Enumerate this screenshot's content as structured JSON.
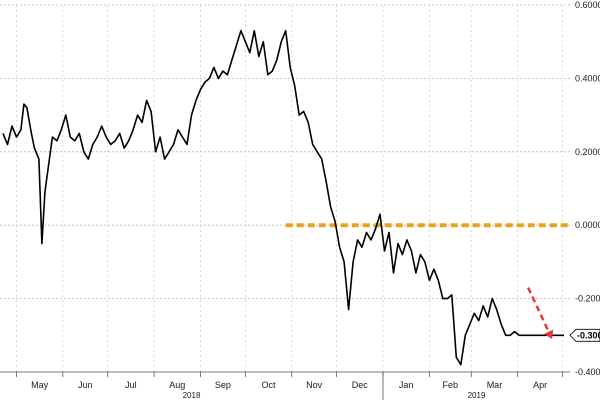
{
  "chart_data": {
    "type": "line",
    "title": "",
    "xlabel": "",
    "ylabel": "",
    "ylim": [
      -0.4,
      0.6
    ],
    "yticks": [
      -0.4,
      -0.3,
      -0.2,
      0.0,
      0.2,
      0.4,
      0.6
    ],
    "ytick_labels": [
      "-0.4000",
      "-0.3000",
      "-0.2000",
      "0.0000",
      "0.2000",
      "0.4000",
      "0.6000"
    ],
    "last_value_label": "-0.3000",
    "grid": true,
    "x_months": [
      "May",
      "Jun",
      "Jul",
      "Aug",
      "Sep",
      "Oct",
      "Nov",
      "Dec",
      "Jan",
      "Feb",
      "Mar",
      "Apr"
    ],
    "x_years": [
      "2018",
      "2019"
    ],
    "x_range": [
      "2018-04-20",
      "2019-05-06"
    ],
    "series": [
      {
        "name": "",
        "color": "#000000",
        "x": [
          "2018-04-22",
          "2018-04-25",
          "2018-04-28",
          "2018-05-01",
          "2018-05-04",
          "2018-05-06",
          "2018-05-08",
          "2018-05-11",
          "2018-05-13",
          "2018-05-16",
          "2018-05-18",
          "2018-05-20",
          "2018-05-23",
          "2018-05-25",
          "2018-05-28",
          "2018-05-31",
          "2018-06-03",
          "2018-06-06",
          "2018-06-09",
          "2018-06-12",
          "2018-06-15",
          "2018-06-18",
          "2018-06-21",
          "2018-06-24",
          "2018-06-27",
          "2018-06-30",
          "2018-07-03",
          "2018-07-06",
          "2018-07-09",
          "2018-07-12",
          "2018-07-15",
          "2018-07-18",
          "2018-07-21",
          "2018-07-24",
          "2018-07-27",
          "2018-07-30",
          "2018-08-02",
          "2018-08-05",
          "2018-08-08",
          "2018-08-11",
          "2018-08-14",
          "2018-08-17",
          "2018-08-20",
          "2018-08-23",
          "2018-08-26",
          "2018-08-29",
          "2018-09-01",
          "2018-09-04",
          "2018-09-07",
          "2018-09-10",
          "2018-09-13",
          "2018-09-16",
          "2018-09-19",
          "2018-09-22",
          "2018-09-25",
          "2018-09-28",
          "2018-10-01",
          "2018-10-04",
          "2018-10-07",
          "2018-10-10",
          "2018-10-13",
          "2018-10-16",
          "2018-10-19",
          "2018-10-22",
          "2018-10-25",
          "2018-10-28",
          "2018-10-31",
          "2018-11-03",
          "2018-11-06",
          "2018-11-09",
          "2018-11-12",
          "2018-11-15",
          "2018-11-18",
          "2018-11-21",
          "2018-11-24",
          "2018-11-27",
          "2018-11-30",
          "2018-12-03",
          "2018-12-06",
          "2018-12-09",
          "2018-12-12",
          "2018-12-15",
          "2018-12-18",
          "2018-12-21",
          "2018-12-24",
          "2018-12-27",
          "2018-12-30",
          "2019-01-02",
          "2019-01-05",
          "2019-01-08",
          "2019-01-11",
          "2019-01-14",
          "2019-01-17",
          "2019-01-20",
          "2019-01-23",
          "2019-01-26",
          "2019-01-29",
          "2019-02-01",
          "2019-02-04",
          "2019-02-07",
          "2019-02-10",
          "2019-02-13",
          "2019-02-16",
          "2019-02-19",
          "2019-02-22",
          "2019-02-25",
          "2019-02-28",
          "2019-03-03",
          "2019-03-06",
          "2019-03-09",
          "2019-03-12",
          "2019-03-15",
          "2019-03-18",
          "2019-03-21",
          "2019-03-24",
          "2019-03-27",
          "2019-03-30",
          "2019-04-02",
          "2019-04-05",
          "2019-04-08",
          "2019-04-11",
          "2019-04-14",
          "2019-04-17",
          "2019-04-20",
          "2019-04-23",
          "2019-04-26",
          "2019-04-29",
          "2019-05-02"
        ],
        "values": [
          0.25,
          0.22,
          0.27,
          0.24,
          0.26,
          0.33,
          0.32,
          0.25,
          0.21,
          0.18,
          -0.05,
          0.09,
          0.18,
          0.24,
          0.23,
          0.26,
          0.3,
          0.24,
          0.23,
          0.25,
          0.2,
          0.18,
          0.22,
          0.24,
          0.27,
          0.24,
          0.22,
          0.23,
          0.25,
          0.21,
          0.23,
          0.26,
          0.3,
          0.28,
          0.34,
          0.31,
          0.2,
          0.24,
          0.18,
          0.2,
          0.22,
          0.26,
          0.24,
          0.22,
          0.3,
          0.34,
          0.37,
          0.39,
          0.4,
          0.43,
          0.4,
          0.42,
          0.41,
          0.45,
          0.49,
          0.53,
          0.5,
          0.47,
          0.53,
          0.46,
          0.5,
          0.41,
          0.42,
          0.45,
          0.5,
          0.53,
          0.43,
          0.38,
          0.3,
          0.31,
          0.28,
          0.22,
          0.2,
          0.18,
          0.12,
          0.05,
          0.01,
          -0.06,
          -0.1,
          -0.23,
          -0.1,
          -0.04,
          -0.06,
          -0.02,
          -0.04,
          -0.01,
          0.03,
          -0.07,
          -0.02,
          -0.13,
          -0.05,
          -0.08,
          -0.04,
          -0.07,
          -0.13,
          -0.08,
          -0.1,
          -0.15,
          -0.12,
          -0.15,
          -0.2,
          -0.2,
          -0.19,
          -0.36,
          -0.38,
          -0.3,
          -0.27,
          -0.24,
          -0.26,
          -0.22,
          -0.25,
          -0.2,
          -0.23,
          -0.27,
          -0.3,
          -0.3,
          -0.29,
          -0.3,
          -0.3,
          -0.3,
          -0.3,
          -0.3,
          -0.3,
          -0.3,
          -0.3,
          -0.3,
          -0.3,
          -0.3
        ]
      }
    ],
    "reference_line": {
      "from": "2018-10-28",
      "to": "2019-05-06",
      "value": 0.0,
      "style": "dashed",
      "color": "#e8a31c"
    },
    "trend_arrow": {
      "from_x": "2019-04-08",
      "from_y": -0.17,
      "to_x": "2019-04-24",
      "to_y": -0.31,
      "style": "dashed",
      "color": "#e53935"
    }
  }
}
